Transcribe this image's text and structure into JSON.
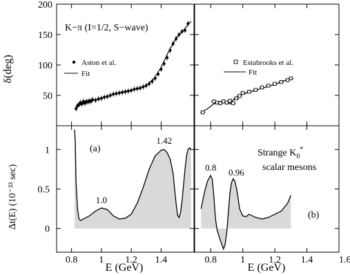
{
  "chart_data": [
    {
      "id": "top-left",
      "type": "scatter",
      "title": "K−π (I=1/2, S−wave)",
      "ylabel": "δ(deg)",
      "xlim": [
        0.7,
        1.62
      ],
      "ylim": [
        0,
        200
      ],
      "yticks": [
        50,
        100,
        150,
        200
      ],
      "xticks": [
        0.8,
        1.0,
        1.2,
        1.4
      ],
      "legend": [
        "Aston et al.",
        "Fit"
      ],
      "series": [
        {
          "name": "Aston et al.",
          "marker": "filled-circle",
          "x": [
            0.83,
            0.84,
            0.85,
            0.86,
            0.87,
            0.88,
            0.89,
            0.9,
            0.91,
            0.92,
            0.93,
            0.94,
            0.96,
            0.98,
            1.0,
            1.02,
            1.04,
            1.06,
            1.08,
            1.1,
            1.12,
            1.14,
            1.16,
            1.18,
            1.2,
            1.22,
            1.24,
            1.26,
            1.28,
            1.3,
            1.32,
            1.34,
            1.36,
            1.38,
            1.4,
            1.42,
            1.44,
            1.46,
            1.48,
            1.5,
            1.52,
            1.54,
            1.56,
            1.58
          ],
          "y": [
            28,
            33,
            35,
            38,
            36,
            40,
            37,
            40,
            39,
            41,
            40,
            43,
            42,
            44,
            45,
            47,
            48,
            50,
            52,
            53,
            54,
            55,
            56,
            57,
            58,
            60,
            61,
            62,
            64,
            66,
            69,
            73,
            78,
            85,
            93,
            102,
            112,
            124,
            135,
            143,
            150,
            155,
            157,
            168
          ]
        },
        {
          "name": "Fit",
          "x": [
            0.83,
            0.88,
            0.95,
            1.05,
            1.15,
            1.25,
            1.3,
            1.35,
            1.4,
            1.45,
            1.5,
            1.55,
            1.6
          ],
          "y": [
            30,
            37,
            42,
            49,
            56,
            62,
            66,
            77,
            96,
            122,
            144,
            157,
            172
          ]
        }
      ]
    },
    {
      "id": "top-right",
      "type": "scatter",
      "xlim": [
        0.7,
        1.6
      ],
      "ylim": [
        0,
        200
      ],
      "legend": [
        "Estabrooks et al.",
        "Fit"
      ],
      "series": [
        {
          "name": "Estabrooks et al.",
          "marker": "open-square",
          "x": [
            0.75,
            0.82,
            0.84,
            0.86,
            0.88,
            0.9,
            0.92,
            0.94,
            0.96,
            0.98,
            1.0,
            1.04,
            1.08,
            1.12,
            1.16,
            1.2,
            1.24,
            1.28,
            1.3
          ],
          "y": [
            22,
            40,
            38,
            37,
            40,
            38,
            41,
            37,
            45,
            49,
            54,
            56,
            59,
            63,
            66,
            69,
            72,
            75,
            78
          ]
        },
        {
          "name": "Fit",
          "x": [
            0.74,
            0.78,
            0.82,
            0.86,
            0.9,
            0.92,
            0.94,
            0.96,
            1.0,
            1.1,
            1.2,
            1.3
          ],
          "y": [
            22,
            28,
            36,
            40,
            38,
            36,
            42,
            47,
            52,
            60,
            68,
            78
          ]
        }
      ]
    },
    {
      "id": "bottom-left",
      "type": "area",
      "ylabel": "Δt(E) (10⁻²³ sec)",
      "xlabel": "E (GeV)",
      "label": "(a)",
      "xlim": [
        0.7,
        1.62
      ],
      "ylim": [
        -0.3,
        1.3
      ],
      "yticks": [
        0,
        0.5,
        1
      ],
      "xticks": [
        0.8,
        1.0,
        1.2,
        1.4
      ],
      "xticklabels": [
        "0.8",
        "1",
        "1.2",
        "1.4"
      ],
      "annotations": [
        {
          "text": "1.0",
          "x": 1.0,
          "y": 0.27
        },
        {
          "text": "1.42",
          "x": 1.42,
          "y": 1.02
        }
      ],
      "series": [
        {
          "name": "",
          "x": [
            0.82,
            0.825,
            0.83,
            0.84,
            0.85,
            0.86,
            0.88,
            0.92,
            0.96,
            1.0,
            1.04,
            1.08,
            1.12,
            1.16,
            1.2,
            1.24,
            1.28,
            1.32,
            1.36,
            1.4,
            1.42,
            1.44,
            1.46,
            1.48,
            1.5,
            1.51,
            1.52,
            1.53,
            1.54,
            1.55,
            1.56,
            1.57,
            1.58,
            1.59,
            1.6
          ],
          "y": [
            1.25,
            1.1,
            0.6,
            0.25,
            0.12,
            0.1,
            0.12,
            0.16,
            0.22,
            0.26,
            0.24,
            0.16,
            0.12,
            0.13,
            0.18,
            0.32,
            0.52,
            0.75,
            0.92,
            0.99,
            1.0,
            0.96,
            0.88,
            0.7,
            0.32,
            0.17,
            0.14,
            0.2,
            0.35,
            0.55,
            0.75,
            0.92,
            1.0,
            1.02,
            1.0
          ]
        }
      ]
    },
    {
      "id": "bottom-right",
      "type": "area",
      "xlabel": "E (GeV)",
      "label": "(b)",
      "text": "Strange K₀* scalar mesons",
      "xlim": [
        0.7,
        1.6
      ],
      "ylim": [
        -0.3,
        1.3
      ],
      "xticks": [
        0.8,
        1.0,
        1.2,
        1.4,
        1.6
      ],
      "xticklabels": [
        "0.8",
        "1",
        "1.2",
        "1.4",
        "1.6"
      ],
      "annotations": [
        {
          "text": "0.8",
          "x": 0.8,
          "y": 0.68
        },
        {
          "text": "0.96",
          "x": 0.96,
          "y": 0.62
        }
      ],
      "series": [
        {
          "name": "",
          "x": [
            0.74,
            0.76,
            0.78,
            0.8,
            0.81,
            0.82,
            0.83,
            0.84,
            0.86,
            0.88,
            0.89,
            0.9,
            0.91,
            0.92,
            0.93,
            0.94,
            0.95,
            0.96,
            0.97,
            0.98,
            1.0,
            1.02,
            1.04,
            1.08,
            1.12,
            1.16,
            1.2,
            1.24,
            1.28,
            1.3
          ],
          "y": [
            0.25,
            0.45,
            0.6,
            0.67,
            0.62,
            0.4,
            0.12,
            -0.02,
            -0.15,
            -0.26,
            -0.2,
            -0.05,
            0.2,
            0.45,
            0.58,
            0.63,
            0.6,
            0.52,
            0.4,
            0.25,
            0.16,
            0.15,
            0.18,
            0.14,
            0.12,
            0.14,
            0.18,
            0.22,
            0.32,
            0.42
          ]
        }
      ]
    }
  ]
}
